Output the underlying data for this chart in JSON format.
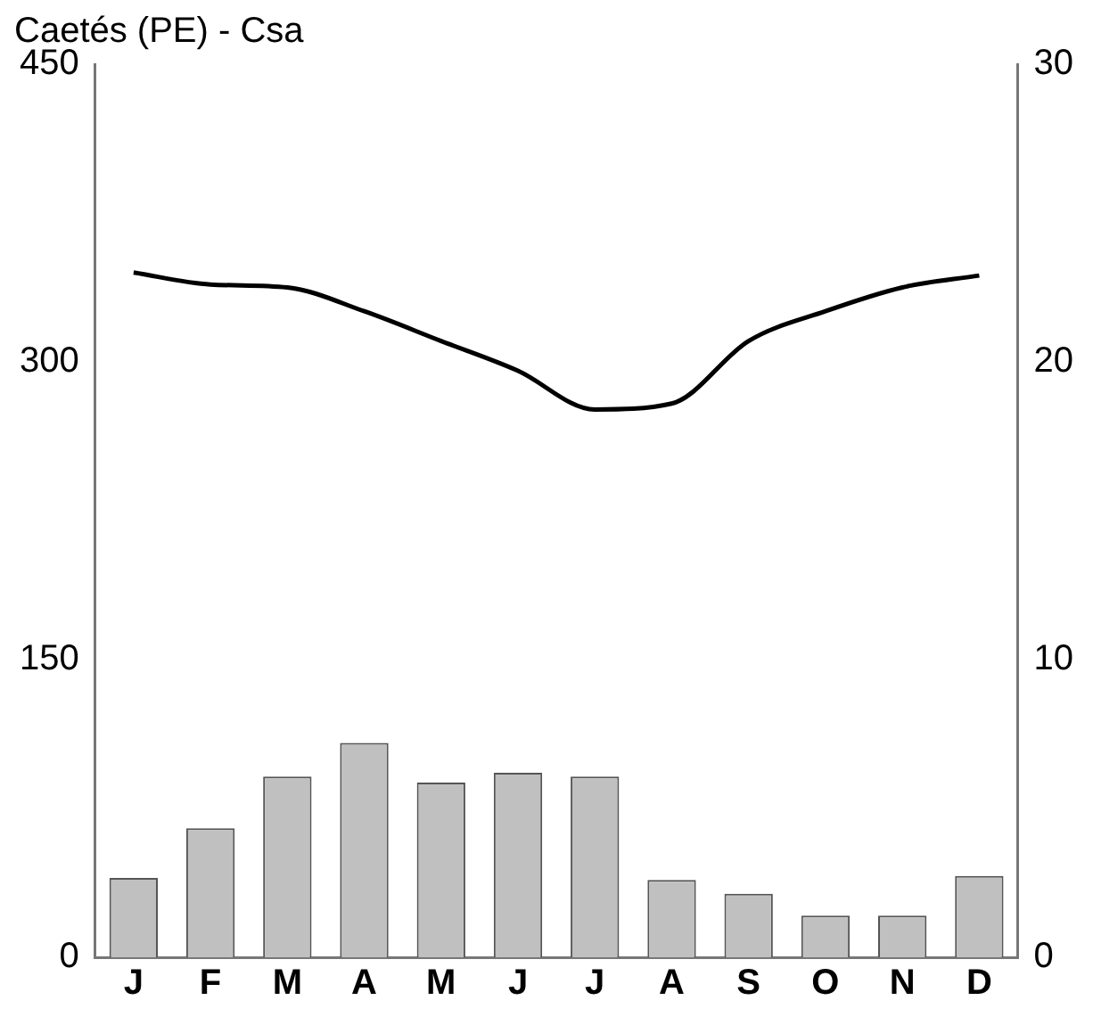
{
  "chart_data": {
    "type": "bar",
    "title": "Caetés (PE) - Csa",
    "categories": [
      "J",
      "F",
      "M",
      "A",
      "M",
      "J",
      "J",
      "A",
      "S",
      "O",
      "N",
      "D"
    ],
    "series": [
      {
        "color": "#c0c0c0",
        "values": [
          40,
          65,
          91,
          108,
          88,
          93,
          91,
          39,
          32,
          21,
          21,
          41
        ]
      },
      {
        "type": "line",
        "axis": "y2",
        "color": "#000000",
        "values": [
          23.0,
          22.6,
          22.5,
          21.7,
          20.7,
          19.7,
          18.4,
          18.6,
          20.7,
          21.7,
          22.5,
          22.9
        ]
      }
    ],
    "ylim": [
      0,
      450
    ],
    "yticks": [
      0,
      150,
      300,
      450
    ],
    "y2lim": [
      0,
      30
    ],
    "y2ticks": [
      0,
      10,
      20,
      30
    ],
    "grid": false,
    "legend": false,
    "marker": "none",
    "line_style": "solid"
  }
}
